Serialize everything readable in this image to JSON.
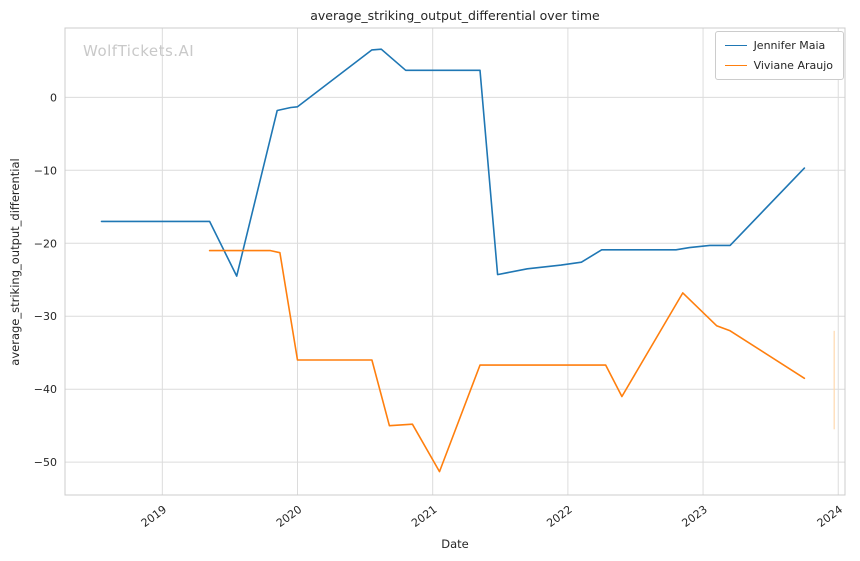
{
  "watermark": "WolfTickets.AI",
  "chart_data": {
    "type": "line",
    "title": "average_striking_output_differential over time",
    "xlabel": "Date",
    "ylabel": "average_striking_output_differential",
    "xlim": [
      2018.28,
      2024.05
    ],
    "ylim": [
      -54.5,
      9.5
    ],
    "xticks": [
      2019,
      2020,
      2021,
      2022,
      2023,
      2024
    ],
    "xtick_labels": [
      "2019",
      "2020",
      "2021",
      "2022",
      "2023",
      "2024"
    ],
    "yticks": [
      0,
      -10,
      -20,
      -30,
      -40,
      -50
    ],
    "ytick_labels": [
      "0",
      "−10",
      "−20",
      "−30",
      "−40",
      "−50"
    ],
    "grid": true,
    "grid_color": "#dcdcdc",
    "frame_color": "#cccccc",
    "legend_position": "upper right",
    "series": [
      {
        "name": "Jennifer Maia",
        "color": "#1f77b4",
        "points": [
          [
            2018.55,
            -17
          ],
          [
            2019.0,
            -17
          ],
          [
            2019.35,
            -17
          ],
          [
            2019.55,
            -24.5
          ],
          [
            2019.85,
            -1.8
          ],
          [
            2019.95,
            -1.4
          ],
          [
            2020.0,
            -1.3
          ],
          [
            2020.55,
            6.5
          ],
          [
            2020.62,
            6.6
          ],
          [
            2020.8,
            3.7
          ],
          [
            2021.1,
            3.7
          ],
          [
            2021.35,
            3.7
          ],
          [
            2021.48,
            -24.3
          ],
          [
            2021.7,
            -23.5
          ],
          [
            2021.95,
            -23.0
          ],
          [
            2022.1,
            -22.6
          ],
          [
            2022.25,
            -20.9
          ],
          [
            2022.6,
            -20.9
          ],
          [
            2022.8,
            -20.9
          ],
          [
            2022.9,
            -20.6
          ],
          [
            2023.05,
            -20.3
          ],
          [
            2023.2,
            -20.3
          ],
          [
            2023.75,
            -9.7
          ]
        ]
      },
      {
        "name": "Viviane Araujo",
        "color": "#ff7f0e",
        "points": [
          [
            2019.35,
            -21
          ],
          [
            2019.6,
            -21
          ],
          [
            2019.8,
            -21
          ],
          [
            2019.87,
            -21.3
          ],
          [
            2020.0,
            -36
          ],
          [
            2020.3,
            -36
          ],
          [
            2020.55,
            -36
          ],
          [
            2020.68,
            -45
          ],
          [
            2020.85,
            -44.8
          ],
          [
            2021.05,
            -51.3
          ],
          [
            2021.35,
            -36.7
          ],
          [
            2021.6,
            -36.7
          ],
          [
            2021.9,
            -36.7
          ],
          [
            2022.1,
            -36.7
          ],
          [
            2022.28,
            -36.7
          ],
          [
            2022.4,
            -41
          ],
          [
            2022.85,
            -26.8
          ],
          [
            2023.1,
            -31.3
          ],
          [
            2023.2,
            -32
          ],
          [
            2023.75,
            -38.5
          ]
        ]
      }
    ],
    "annotations": [
      {
        "type": "vertical-segment",
        "x": 2023.97,
        "y1": -32,
        "y2": -45.5,
        "color": "#ffd9ae"
      }
    ]
  }
}
